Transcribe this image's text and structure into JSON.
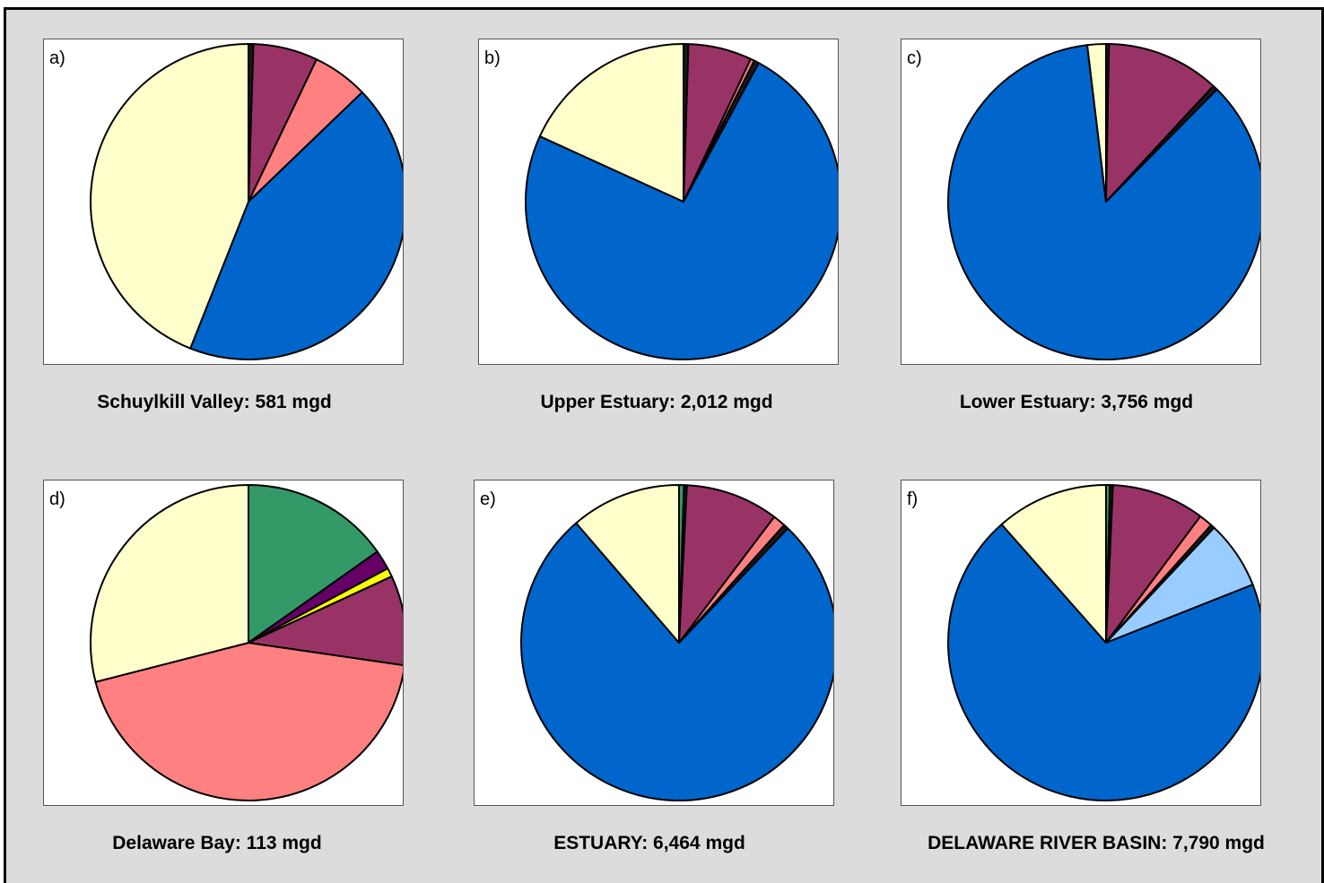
{
  "chart_data": [
    {
      "type": "pie",
      "label": "a)",
      "caption": "Schuylkill Valley:  581 mgd",
      "values": [
        0.5,
        6.6,
        5.7,
        43.2,
        44.0
      ],
      "colors": [
        "#1a1a1a",
        "#993366",
        "#ff8080",
        "#0066cc",
        "#ffffcc"
      ]
    },
    {
      "type": "pie",
      "label": "b)",
      "caption": "Upper Estuary:  2,012 mgd",
      "values": [
        0.5,
        6.5,
        0.4,
        0.5,
        73.9,
        18.2
      ],
      "colors": [
        "#1a1a1a",
        "#993366",
        "#ff8080",
        "#1a1a1a",
        "#0066cc",
        "#ffffcc"
      ]
    },
    {
      "type": "pie",
      "label": "c)",
      "caption": "Lower Estuary:  3,756 mgd",
      "values": [
        0.3,
        11.6,
        0.5,
        85.7,
        1.9
      ],
      "colors": [
        "#1a1a1a",
        "#993366",
        "#1a1a1a",
        "#0066cc",
        "#ffffcc"
      ]
    },
    {
      "type": "pie",
      "label": "d)",
      "caption": "Delaware Bay:  113 mgd",
      "values": [
        15.2,
        2.0,
        0.9,
        9.2,
        43.7,
        29.0
      ],
      "colors": [
        "#339966",
        "#660066",
        "#ffff00",
        "#993366",
        "#ff8080",
        "#ffffcc"
      ]
    },
    {
      "type": "pie",
      "label": "e)",
      "caption": "ESTUARY:  6,464 mgd",
      "values": [
        0.5,
        0.3,
        9.5,
        1.3,
        0.5,
        76.6,
        11.3
      ],
      "colors": [
        "#339966",
        "#1a1a1a",
        "#993366",
        "#ff8080",
        "#1a1a1a",
        "#0066cc",
        "#ffffcc"
      ]
    },
    {
      "type": "pie",
      "label": "f)",
      "caption": "DELAWARE RIVER BASIN:  7,790 mgd",
      "values": [
        0.4,
        0.3,
        9.5,
        1.4,
        0.4,
        7.0,
        69.5,
        11.5
      ],
      "colors": [
        "#339966",
        "#1a1a1a",
        "#993366",
        "#ff8080",
        "#1a1a1a",
        "#99ccff",
        "#0066cc",
        "#ffffcc"
      ]
    }
  ]
}
